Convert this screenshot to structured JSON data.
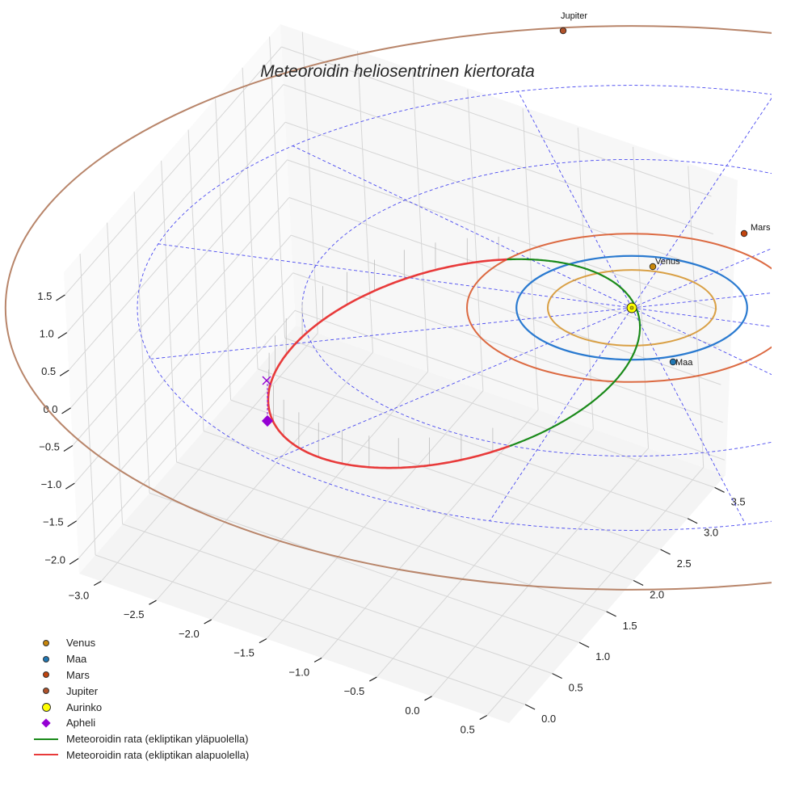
{
  "chart_data": {
    "type": "line",
    "title": "Meteoroidin heliosentrinen kiertorata",
    "x_ticks": [
      "−3.0",
      "−2.5",
      "−2.0",
      "−1.5",
      "−1.0",
      "−0.5",
      "0.0",
      "0.5"
    ],
    "y_ticks": [
      "0.0",
      "0.5",
      "1.0",
      "1.5",
      "2.0",
      "2.5",
      "3.0",
      "3.5"
    ],
    "z_ticks": [
      "1.5",
      "1.0",
      "0.5",
      "0.0",
      "−0.5",
      "−1.0",
      "−1.5",
      "−2.0"
    ],
    "xlim": [
      -3.2,
      0.7
    ],
    "ylim": [
      -0.3,
      3.7
    ],
    "zlim": [
      -2.2,
      1.8
    ],
    "bodies": [
      {
        "name": "Venus",
        "label": "Venus",
        "orbit_radius_au": 0.72,
        "color": "#c8860a"
      },
      {
        "name": "Maa",
        "label": "Maa",
        "orbit_radius_au": 1.0,
        "color": "#1f77b4"
      },
      {
        "name": "Mars",
        "label": "Mars",
        "orbit_radius_au": 1.52,
        "color": "#c1440e"
      },
      {
        "name": "Jupiter",
        "label": "Jupiter",
        "orbit_radius_au": 5.2,
        "color": "#b0522a"
      }
    ],
    "sun": {
      "label": "Aurinko",
      "color": "#ffff00"
    },
    "aphelion": {
      "label": "Apheli",
      "color": "#9400d3"
    },
    "series": [
      {
        "name": "Meteoroidin rata (ekliptikan yläpuolella)",
        "color": "#1a8a1a"
      },
      {
        "name": "Meteoroidin rata (ekliptikan alapuolella)",
        "color": "#e83a3a"
      }
    ],
    "legend": [
      {
        "label": "Venus",
        "marker": "dot",
        "color": "#c8860a"
      },
      {
        "label": "Maa",
        "marker": "dot",
        "color": "#1f77b4"
      },
      {
        "label": "Mars",
        "marker": "dot",
        "color": "#c1440e"
      },
      {
        "label": "Jupiter",
        "marker": "dot",
        "color": "#b0522a"
      },
      {
        "label": "Aurinko",
        "marker": "bigdot",
        "color": "#ffff00"
      },
      {
        "label": "Apheli",
        "marker": "diamond",
        "color": "#9400d3"
      },
      {
        "label": "Meteoroidin rata (ekliptikan yläpuolella)",
        "marker": "line",
        "color": "#1a8a1a"
      },
      {
        "label": "Meteoroidin rata (ekliptikan alapuolella)",
        "marker": "line",
        "color": "#e83a3a"
      }
    ],
    "legend_position": "bottom-left",
    "grid": true
  }
}
